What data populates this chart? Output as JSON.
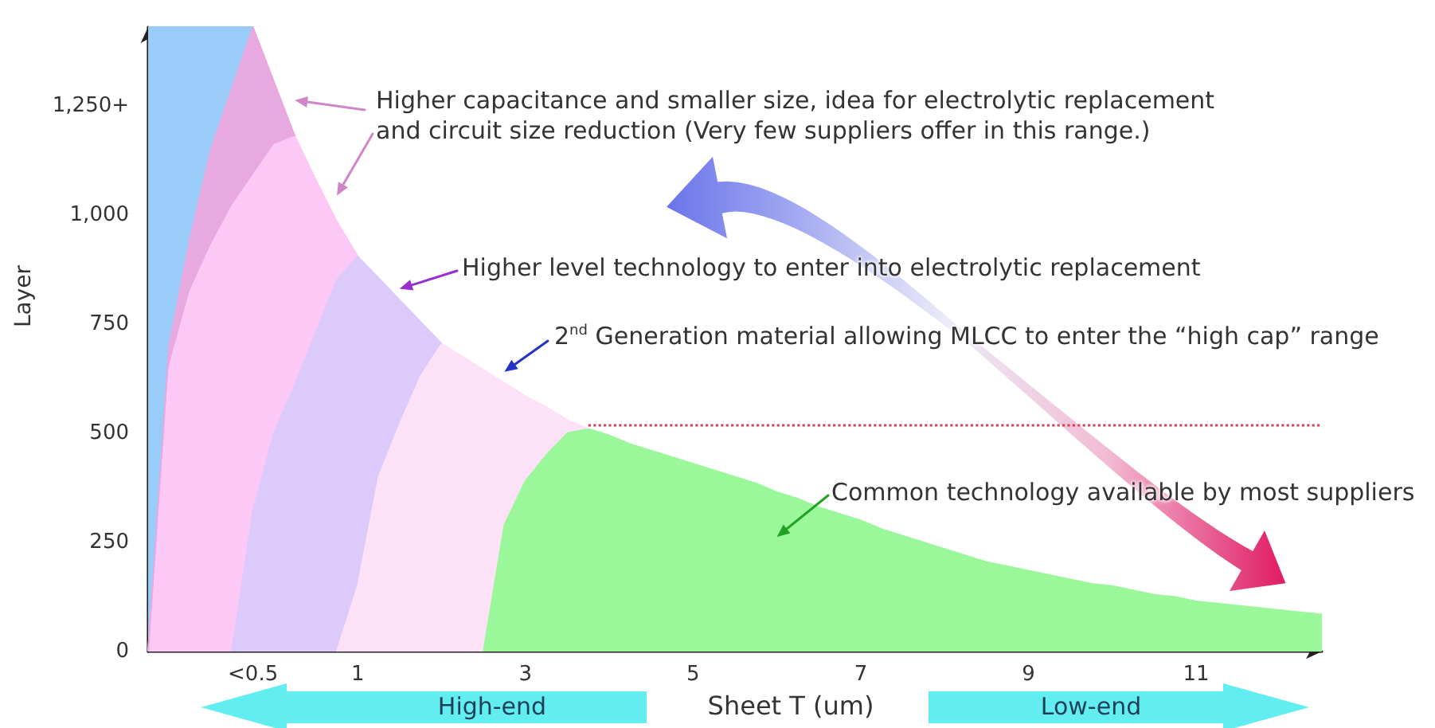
{
  "chart_data": {
    "type": "area",
    "xlabel": "Sheet T (um)",
    "ylabel": "Layer",
    "categories": [
      null,
      null,
      null,
      null,
      null,
      "<0.5",
      null,
      null,
      null,
      null,
      "1",
      null,
      null,
      null,
      null,
      null,
      null,
      null,
      "3",
      null,
      null,
      null,
      null,
      null,
      null,
      null,
      "5",
      null,
      null,
      null,
      null,
      null,
      null,
      null,
      "7",
      null,
      null,
      null,
      null,
      null,
      null,
      null,
      "9",
      null,
      null,
      null,
      null,
      null,
      null,
      null,
      "11",
      null,
      null,
      null,
      null,
      null,
      null
    ],
    "ylim": [
      0,
      1430
    ],
    "yticks": [
      0,
      250,
      500,
      750,
      {
        "value": 1000,
        "label": "1,000"
      },
      {
        "value": 1250,
        "label": "1,250+"
      }
    ],
    "stacked": true,
    "series": [
      {
        "color": "#9af79a",
        "values": [
          null,
          null,
          null,
          null,
          null,
          null,
          null,
          null,
          null,
          null,
          null,
          null,
          null,
          null,
          null,
          null,
          0,
          290,
          390,
          450,
          500,
          510,
          495,
          475,
          460,
          445,
          430,
          415,
          400,
          385,
          365,
          350,
          330,
          315,
          300,
          280,
          265,
          250,
          235,
          220,
          205,
          195,
          185,
          175,
          165,
          155,
          150,
          140,
          130,
          125,
          115,
          110,
          105,
          100,
          95,
          90,
          85
        ]
      },
      {
        "color": "#fde2f7",
        "values": [
          null,
          null,
          null,
          null,
          null,
          null,
          null,
          null,
          null,
          0,
          150,
          400,
          520,
          630,
          705,
          675,
          645,
          325,
          195,
          110,
          30,
          0,
          null,
          null,
          null,
          null,
          null,
          null,
          null,
          null,
          null,
          null,
          null,
          null,
          null,
          null,
          null,
          null,
          null,
          null,
          null,
          null,
          null,
          null,
          null,
          null,
          null,
          null,
          null,
          null,
          null,
          null,
          null,
          null,
          null,
          null,
          null
        ]
      },
      {
        "color": "#dccafa",
        "values": [
          null,
          null,
          null,
          null,
          0,
          320,
          500,
          610,
          730,
          850,
          755,
          455,
          285,
          125,
          0,
          null,
          null,
          null,
          null,
          null,
          null,
          null,
          null,
          null,
          null,
          null,
          null,
          null,
          null,
          null,
          null,
          null,
          null,
          null,
          null,
          null,
          null,
          null,
          null,
          null,
          null,
          null,
          null,
          null,
          null,
          null,
          null,
          null,
          null,
          null,
          null,
          null,
          null,
          null,
          null,
          null,
          null
        ]
      },
      {
        "color": "#fcc8f6",
        "values": [
          0,
          650,
          825,
          930,
          1020,
          770,
          660,
          570,
          350,
          135,
          0,
          null,
          null,
          null,
          null,
          null,
          null,
          null,
          null,
          null,
          null,
          null,
          null,
          null,
          null,
          null,
          null,
          null,
          null,
          null,
          null,
          null,
          null,
          null,
          null,
          null,
          null,
          null,
          null,
          null,
          null,
          null,
          null,
          null,
          null,
          null,
          null,
          null,
          null,
          null,
          null,
          null,
          null,
          null,
          null,
          null,
          null
        ]
      },
      {
        "color": "#e8a8e0",
        "values": [
          0,
          50,
          120,
          220,
          270,
          340,
          145,
          0,
          null,
          null,
          null,
          null,
          null,
          null,
          null,
          null,
          null,
          null,
          null,
          null,
          null,
          null,
          null,
          null,
          null,
          null,
          null,
          null,
          null,
          null,
          null,
          null,
          null,
          null,
          null,
          null,
          null,
          null,
          null,
          null,
          null,
          null,
          null,
          null,
          null,
          null,
          null,
          null,
          null,
          null,
          null,
          null,
          null,
          null,
          null,
          null,
          null
        ]
      },
      {
        "color": "#99ccf8",
        "values": [
          1430,
          730,
          485,
          280,
          140,
          0,
          null,
          null,
          null,
          null,
          null,
          null,
          null,
          null,
          null,
          null,
          null,
          null,
          null,
          null,
          null,
          null,
          null,
          null,
          null,
          null,
          null,
          null,
          null,
          null,
          null,
          null,
          null,
          null,
          null,
          null,
          null,
          null,
          null,
          null,
          null,
          null,
          null,
          null,
          null,
          null,
          null,
          null,
          null,
          null,
          null,
          null,
          null,
          null,
          null,
          null,
          null
        ]
      }
    ],
    "ref_lines": [
      {
        "axis": "y",
        "value": 520,
        "color": "#d8405e",
        "line_style": "dotted"
      }
    ],
    "annotations": [
      "Higher capacitance and smaller size, idea for electrolytic replacement and circuit size reduction (Very few suppliers offer in this range.)",
      "Higher level technology to enter into electrolytic replacement",
      "2$^{nd}$ Generation material allowing MLCC to enter the “high cap” range",
      "Common technology available by most suppliers",
      "High-end",
      "Low-end"
    ]
  }
}
